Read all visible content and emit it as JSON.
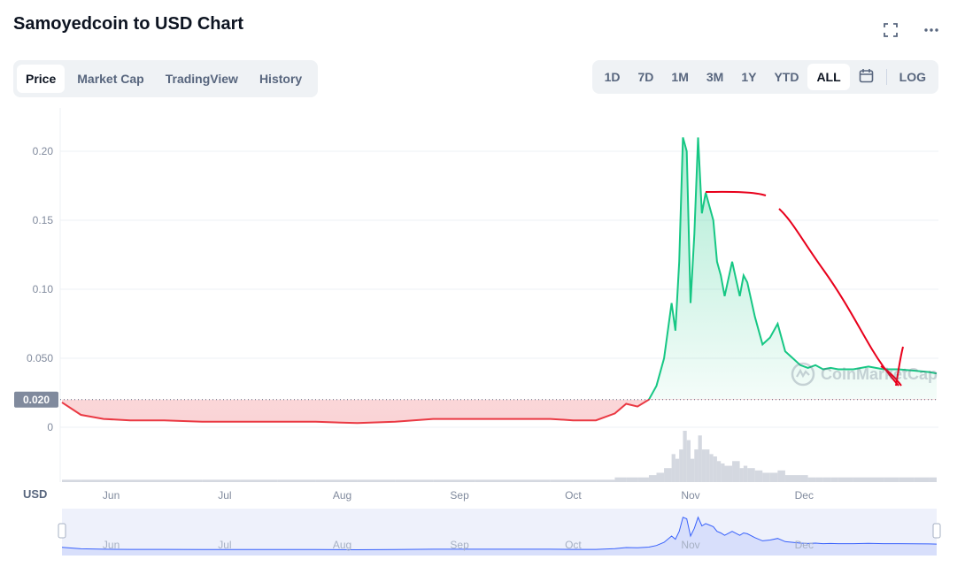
{
  "title": "Samoyedcoin to USD Chart",
  "header_icons": [
    "fullscreen-icon",
    "more-icon"
  ],
  "tabs": [
    "Price",
    "Market Cap",
    "TradingView",
    "History"
  ],
  "active_tab": "Price",
  "ranges": [
    "1D",
    "7D",
    "1M",
    "3M",
    "1Y",
    "YTD",
    "ALL"
  ],
  "active_range": "ALL",
  "log_label": "LOG",
  "currency_label": "USD",
  "watermark": "CoinMarketCap",
  "colors": {
    "up": "#16c784",
    "down": "#ea3943",
    "volume": "#c5cbd6",
    "navigator": "#3861fb",
    "annotation": "#e8001b"
  },
  "chart_data": {
    "type": "line",
    "title": "Samoyedcoin to USD Chart",
    "xlabel": "",
    "ylabel": "USD",
    "ylim": [
      0,
      0.22
    ],
    "y_ticks": [
      "0.20",
      "0.15",
      "0.10",
      "0.050",
      "0"
    ],
    "y_tick_values": [
      0.2,
      0.15,
      0.1,
      0.05,
      0
    ],
    "x_ticks": [
      "Jun",
      "Jul",
      "Aug",
      "Sep",
      "Oct",
      "Nov",
      "Dec"
    ],
    "baseline": 0.02,
    "baseline_label": "0.020",
    "x_range": [
      "2021-05-19",
      "2022-01-05"
    ],
    "series": [
      {
        "color_rule": "green above baseline, red below",
        "x": [
          "2021-05-19",
          "2021-05-24",
          "2021-05-30",
          "2021-06-06",
          "2021-06-15",
          "2021-06-25",
          "2021-07-05",
          "2021-07-15",
          "2021-07-25",
          "2021-08-05",
          "2021-08-15",
          "2021-08-25",
          "2021-09-05",
          "2021-09-15",
          "2021-09-25",
          "2021-10-01",
          "2021-10-07",
          "2021-10-12",
          "2021-10-15",
          "2021-10-18",
          "2021-10-21",
          "2021-10-23",
          "2021-10-25",
          "2021-10-27",
          "2021-10-28",
          "2021-10-29",
          "2021-10-30",
          "2021-10-31",
          "2021-11-01",
          "2021-11-02",
          "2021-11-03",
          "2021-11-04",
          "2021-11-05",
          "2021-11-06",
          "2021-11-07",
          "2021-11-08",
          "2021-11-09",
          "2021-11-10",
          "2021-11-12",
          "2021-11-14",
          "2021-11-15",
          "2021-11-16",
          "2021-11-18",
          "2021-11-20",
          "2021-11-22",
          "2021-11-24",
          "2021-11-26",
          "2021-11-28",
          "2021-11-30",
          "2021-12-02",
          "2021-12-04",
          "2021-12-06",
          "2021-12-08",
          "2021-12-10",
          "2021-12-14",
          "2021-12-18",
          "2021-12-22",
          "2021-12-26",
          "2021-12-30",
          "2022-01-03",
          "2022-01-05"
        ],
        "values": [
          0.018,
          0.009,
          0.006,
          0.005,
          0.005,
          0.004,
          0.004,
          0.004,
          0.004,
          0.003,
          0.004,
          0.006,
          0.006,
          0.006,
          0.006,
          0.005,
          0.005,
          0.01,
          0.017,
          0.015,
          0.02,
          0.03,
          0.05,
          0.09,
          0.07,
          0.12,
          0.21,
          0.2,
          0.09,
          0.14,
          0.21,
          0.155,
          0.17,
          0.16,
          0.15,
          0.12,
          0.11,
          0.095,
          0.12,
          0.095,
          0.11,
          0.105,
          0.08,
          0.06,
          0.065,
          0.075,
          0.055,
          0.05,
          0.045,
          0.043,
          0.045,
          0.042,
          0.043,
          0.042,
          0.042,
          0.044,
          0.042,
          0.042,
          0.041,
          0.04,
          0.039
        ]
      }
    ],
    "volume": [
      1,
      1,
      1,
      1,
      1,
      1,
      1,
      1,
      1,
      1,
      1,
      1,
      1,
      1,
      1,
      1,
      1,
      2,
      2,
      2,
      3,
      4,
      6,
      12,
      10,
      14,
      22,
      18,
      10,
      14,
      20,
      14,
      14,
      12,
      11,
      9,
      8,
      7,
      9,
      6,
      7,
      6,
      5,
      4,
      4,
      5,
      3,
      3,
      3,
      2,
      2,
      2,
      2,
      2,
      2,
      2,
      2,
      2,
      2,
      2,
      2
    ],
    "navigator_ticks": [
      "Jun",
      "Jul",
      "Aug",
      "Sep",
      "Oct",
      "Nov",
      "Dec"
    ]
  }
}
